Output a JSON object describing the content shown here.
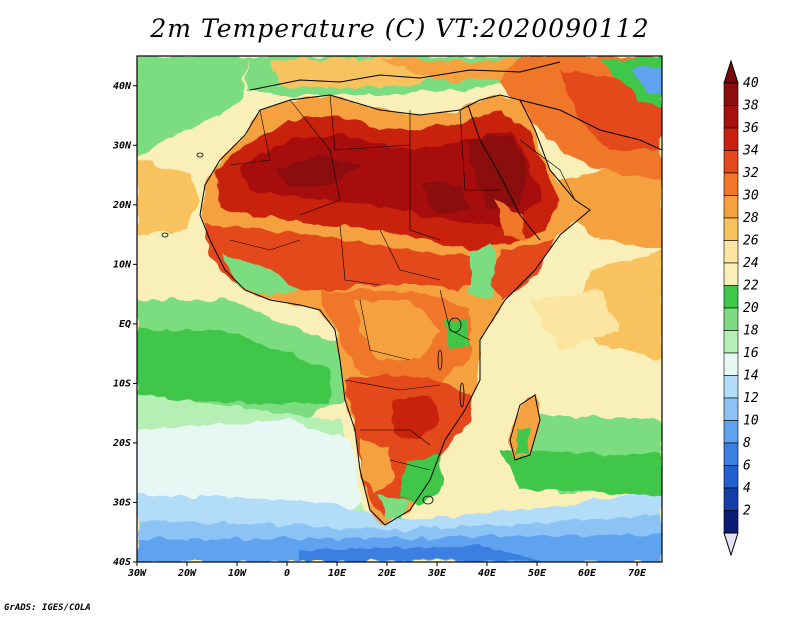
{
  "title": "2m Temperature (C) VT:2020090112",
  "footer": "GrADS: IGES/COLA",
  "map": {
    "lon_range": [
      -30,
      75
    ],
    "lat_range": [
      -40,
      45
    ],
    "lat_ticks": [
      {
        "value": 40,
        "label": "40N"
      },
      {
        "value": 30,
        "label": "30N"
      },
      {
        "value": 20,
        "label": "20N"
      },
      {
        "value": 10,
        "label": "10N"
      },
      {
        "value": 0,
        "label": "EQ"
      },
      {
        "value": -10,
        "label": "10S"
      },
      {
        "value": -20,
        "label": "20S"
      },
      {
        "value": -30,
        "label": "30S"
      },
      {
        "value": -40,
        "label": "40S"
      }
    ],
    "lon_ticks": [
      {
        "value": -30,
        "label": "30W"
      },
      {
        "value": -20,
        "label": "20W"
      },
      {
        "value": -10,
        "label": "10W"
      },
      {
        "value": 0,
        "label": "0"
      },
      {
        "value": 10,
        "label": "10E"
      },
      {
        "value": 20,
        "label": "20E"
      },
      {
        "value": 30,
        "label": "30E"
      },
      {
        "value": 40,
        "label": "40E"
      },
      {
        "value": 50,
        "label": "50E"
      },
      {
        "value": 60,
        "label": "60E"
      },
      {
        "value": 70,
        "label": "70E"
      }
    ]
  },
  "colorbar": {
    "levels": [
      {
        "label": "40",
        "color": "#8c0d0d"
      },
      {
        "label": "38",
        "color": "#a80f0f"
      },
      {
        "label": "36",
        "color": "#c8220e"
      },
      {
        "label": "34",
        "color": "#e4481a"
      },
      {
        "label": "32",
        "color": "#f0762a"
      },
      {
        "label": "30",
        "color": "#f6a140"
      },
      {
        "label": "28",
        "color": "#f8c35e"
      },
      {
        "label": "26",
        "color": "#fbe5a0"
      },
      {
        "label": "24",
        "color": "#f8f0b8"
      },
      {
        "label": "22",
        "color": "#3fc74a"
      },
      {
        "label": "20",
        "color": "#7cdd80"
      },
      {
        "label": "18",
        "color": "#b6efb4"
      },
      {
        "label": "16",
        "color": "#e6f7f4"
      },
      {
        "label": "14",
        "color": "#b3dcf8"
      },
      {
        "label": "12",
        "color": "#8cc3f5"
      },
      {
        "label": "10",
        "color": "#5ea3f0"
      },
      {
        "label": "8",
        "color": "#3b7fe0"
      },
      {
        "label": "6",
        "color": "#225fcf"
      },
      {
        "label": "4",
        "color": "#153ea8"
      },
      {
        "label": "2",
        "color": "#0c1d75"
      }
    ],
    "top_triangle_color": "#7a0a0a",
    "bottom_triangle_color": "#e6e0f8"
  }
}
